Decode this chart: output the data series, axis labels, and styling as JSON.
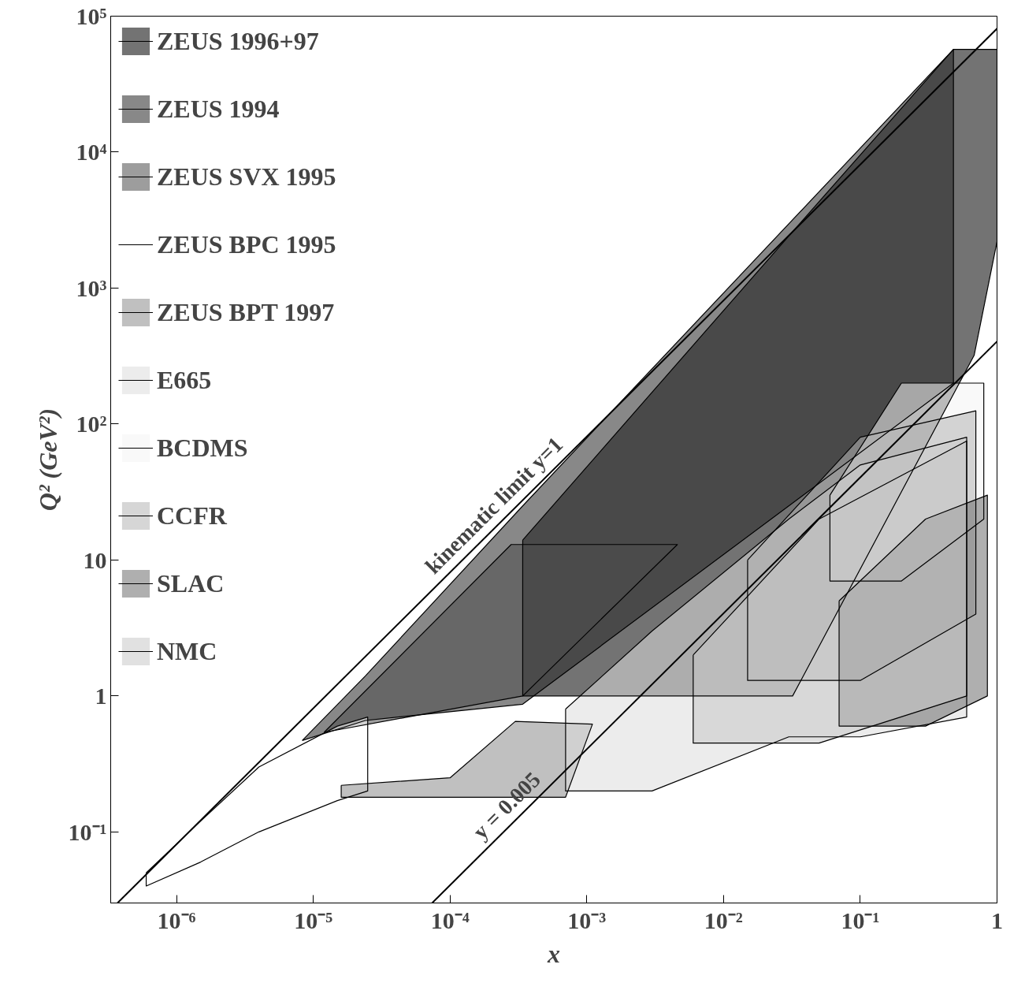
{
  "chart_data": {
    "type": "area",
    "xlabel": "x",
    "ylabel": "Q² (GeV²)",
    "log": "xy",
    "legend": "top left",
    "grid": false,
    "xlim": [
      3.3e-07,
      1
    ],
    "ylim": [
      0.03,
      100000
    ],
    "xticks": [
      {
        "value": 1e-06,
        "label": "10⁻⁶"
      },
      {
        "value": 1e-05,
        "label": "10⁻⁵"
      },
      {
        "value": 0.0001,
        "label": "10⁻⁴"
      },
      {
        "value": 0.001,
        "label": "10⁻³"
      },
      {
        "value": 0.01,
        "label": "10⁻²"
      },
      {
        "value": 0.1,
        "label": "10⁻¹"
      },
      1
    ],
    "yticks": [
      {
        "value": 0.1,
        "label": "10⁻¹"
      },
      1,
      10,
      {
        "value": 100,
        "label": "10²"
      },
      {
        "value": 1000,
        "label": "10³"
      },
      {
        "value": 10000,
        "label": "10⁴"
      },
      {
        "value": 100000,
        "label": "10⁵"
      }
    ],
    "series": [
      {
        "name": "ZEUS 1996+97",
        "color": "#000000",
        "x": [
          0.00034,
          0.032,
          0.48,
          1.0,
          1.0,
          0.68,
          0.032,
          0.00034
        ],
        "values": [
          14,
          2600,
          57000,
          57000,
          2200,
          320,
          1,
          1
        ]
      },
      {
        "name": "ZEUS 1994",
        "color": "#262626",
        "x": [
          8.3e-06,
          2.4e-05,
          0.00034,
          0.48,
          0.48,
          0.00034,
          2.4e-05
        ],
        "values": [
          0.47,
          1.4,
          25,
          57000,
          200,
          0.87,
          0.66
        ]
      },
      {
        "name": "ZEUS SVX 1995",
        "color": "#4d4d4d",
        "x": [
          1.2e-05,
          0.00028,
          0.0046,
          0.00034
        ],
        "values": [
          0.54,
          13,
          13,
          1
        ]
      },
      {
        "name": "ZEUS BPC 1995",
        "color": "#ffffff",
        "x": [
          6e-07,
          1.5e-06,
          4e-06,
          1.5e-05,
          2.5e-05,
          2.5e-05,
          1.5e-05,
          4e-06,
          1.5e-06,
          6e-07
        ],
        "values": [
          0.05,
          0.12,
          0.3,
          0.6,
          0.7,
          0.2,
          0.17,
          0.1,
          0.06,
          0.04
        ]
      },
      {
        "name": "ZEUS BPT 1997",
        "color": "#8c8c8c",
        "x": [
          1.6e-05,
          0.0001,
          0.0003,
          0.0011,
          0.0007,
          1.6e-05
        ],
        "values": [
          0.22,
          0.25,
          0.65,
          0.62,
          0.18,
          0.18
        ]
      },
      {
        "name": "E665",
        "color": "#dcdcdc",
        "x": [
          0.0007,
          0.003,
          0.03,
          0.1,
          0.6,
          0.6,
          0.1,
          0.03,
          0.003,
          0.0007
        ],
        "values": [
          0.8,
          3,
          20,
          50,
          80,
          0.7,
          0.5,
          0.5,
          0.2,
          0.2
        ]
      },
      {
        "name": "BCDMS",
        "color": "#f4f4f4",
        "x": [
          0.06,
          0.2,
          0.8,
          0.8,
          0.2,
          0.06
        ],
        "values": [
          30,
          200,
          200,
          20,
          7,
          7
        ]
      },
      {
        "name": "CCFR",
        "color": "#b4b4b4",
        "x": [
          0.015,
          0.1,
          0.7,
          0.7,
          0.1,
          0.015
        ],
        "values": [
          10,
          80,
          125,
          4,
          1.3,
          1.3
        ]
      },
      {
        "name": "SLAC",
        "color": "#6e6e6e",
        "x": [
          0.07,
          0.3,
          0.85,
          0.85,
          0.3,
          0.07
        ],
        "values": [
          5,
          20,
          30,
          1,
          0.6,
          0.6
        ]
      },
      {
        "name": "NMC",
        "color": "#c8c8c8",
        "x": [
          0.006,
          0.05,
          0.6,
          0.6,
          0.05,
          0.006
        ],
        "values": [
          2,
          20,
          75,
          1,
          0.45,
          0.45
        ]
      },
      {
        "type": "line",
        "color": "#000000",
        "x": [
          3.7e-07,
          1
        ],
        "values": [
          0.03,
          81000
        ]
      },
      {
        "type": "line",
        "color": "#000000",
        "x": [
          7.4e-05,
          1
        ],
        "values": [
          0.03,
          405
        ]
      }
    ],
    "annotations": [
      {
        "text": "kinematic limit  y=1",
        "x": 0.00025,
        "y": 20.25
      },
      {
        "text": "y = 0.005",
        "x": 0.0003,
        "y": 0.1215
      }
    ]
  }
}
